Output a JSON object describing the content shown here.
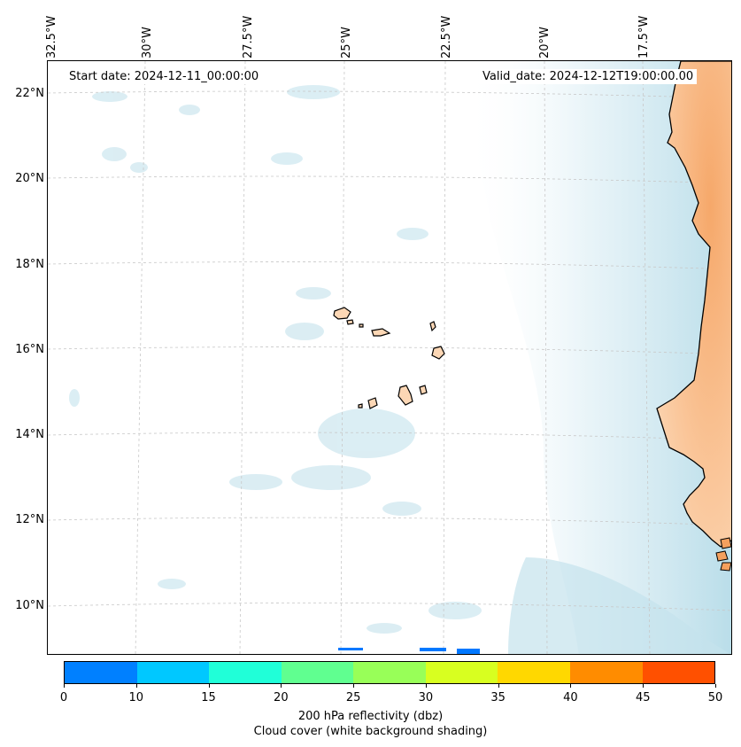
{
  "map": {
    "start_date": "Start date: 2024-12-11_00:00:00",
    "valid_date": "Valid_date: 2024-12-12T19:00:00.00",
    "lon_labels": [
      "32.5°W",
      "30°W",
      "27.5°W",
      "25°W",
      "22.5°W",
      "20°W",
      "17.5°W"
    ],
    "lat_labels": [
      "22°N",
      "20°N",
      "18°N",
      "16°N",
      "14°N",
      "12°N",
      "10°N"
    ]
  },
  "colorbar": {
    "ticks": [
      "0",
      "10",
      "15",
      "20",
      "25",
      "30",
      "35",
      "40",
      "45",
      "50"
    ],
    "colors": [
      "#0080ff",
      "#00c8ff",
      "#20ffd8",
      "#60ff90",
      "#98ff58",
      "#d8ff20",
      "#ffd800",
      "#ff8c00",
      "#ff5000"
    ],
    "label_line1": "200 hPa reflectivity (dbz)",
    "label_line2": "Cloud cover (white background shading)"
  },
  "chart_data": {
    "type": "heatmap",
    "title": "",
    "xlabel": "",
    "ylabel": "",
    "variable": "200 hPa reflectivity (dbz)",
    "background_shading": "Cloud cover",
    "colorbar_range": [
      0,
      50
    ],
    "colorbar_bounds": [
      0,
      10,
      15,
      20,
      25,
      30,
      35,
      40,
      45,
      50
    ],
    "lon_range": [
      -33,
      -15
    ],
    "lat_range": [
      9,
      22.7
    ],
    "grid": true
  }
}
